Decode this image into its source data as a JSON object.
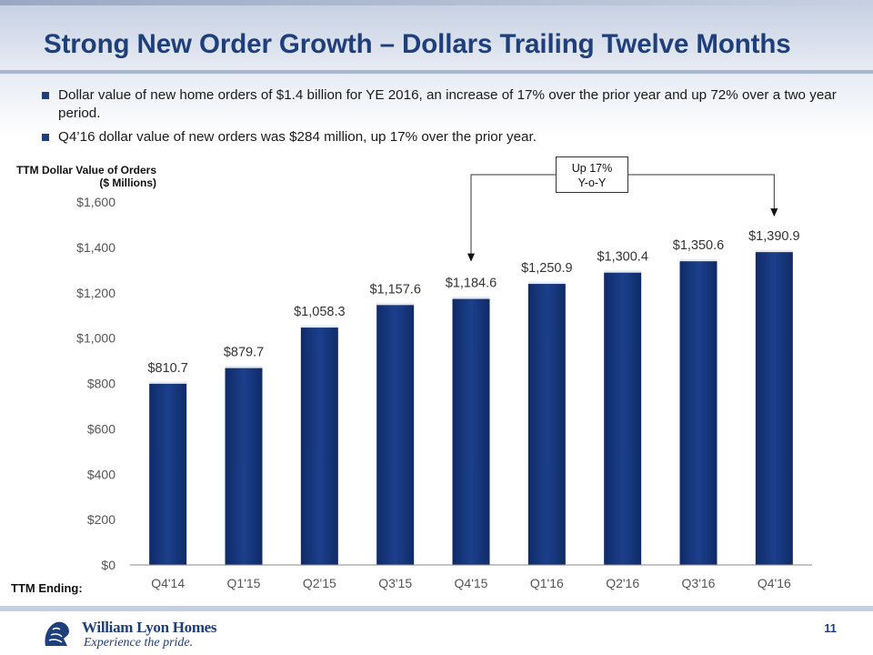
{
  "title": "Strong New Order Growth – Dollars Trailing Twelve Months",
  "bullets": [
    "Dollar value of new home orders of $1.4 billion for YE 2016, an increase of 17% over the prior year and up 72% over a two year period.",
    "Q4’16 dollar value of new orders was $284 million, up 17% over the prior year."
  ],
  "chart_data": {
    "type": "bar",
    "title": "",
    "ylabel_lines": [
      "TTM Dollar Value of Orders",
      "($ Millions)"
    ],
    "xlabel": "TTM Ending:",
    "categories": [
      "Q4'14",
      "Q1'15",
      "Q2'15",
      "Q3'15",
      "Q4'15",
      "Q1'16",
      "Q2'16",
      "Q3'16",
      "Q4'16"
    ],
    "values": [
      810.7,
      879.7,
      1058.3,
      1157.6,
      1184.6,
      1250.9,
      1300.4,
      1350.6,
      1390.9
    ],
    "data_labels": [
      "$810.7",
      "$879.7",
      "$1,058.3",
      "$1,157.6",
      "$1,184.6",
      "$1,250.9",
      "$1,300.4",
      "$1,350.6",
      "$1,390.9"
    ],
    "ylim": [
      0,
      1600
    ],
    "yticks": [
      0,
      200,
      400,
      600,
      800,
      1000,
      1200,
      1400,
      1600
    ],
    "ytick_labels": [
      "$0",
      "$200",
      "$400",
      "$600",
      "$800",
      "$1,000",
      "$1,200",
      "$1,400",
      "$1,600"
    ],
    "grid": false,
    "bar_color": "#1c3f8c",
    "annotation": {
      "lines": [
        "Up 17%",
        "Y-o-Y"
      ],
      "from_category": "Q4'15",
      "to_category": "Q4'16"
    }
  },
  "footer": {
    "company": "William Lyon Homes",
    "tagline": "Experience the pride.",
    "page_number": "11"
  },
  "colors": {
    "brand": "#1f3f7a",
    "bar": "#1c3f8c"
  }
}
